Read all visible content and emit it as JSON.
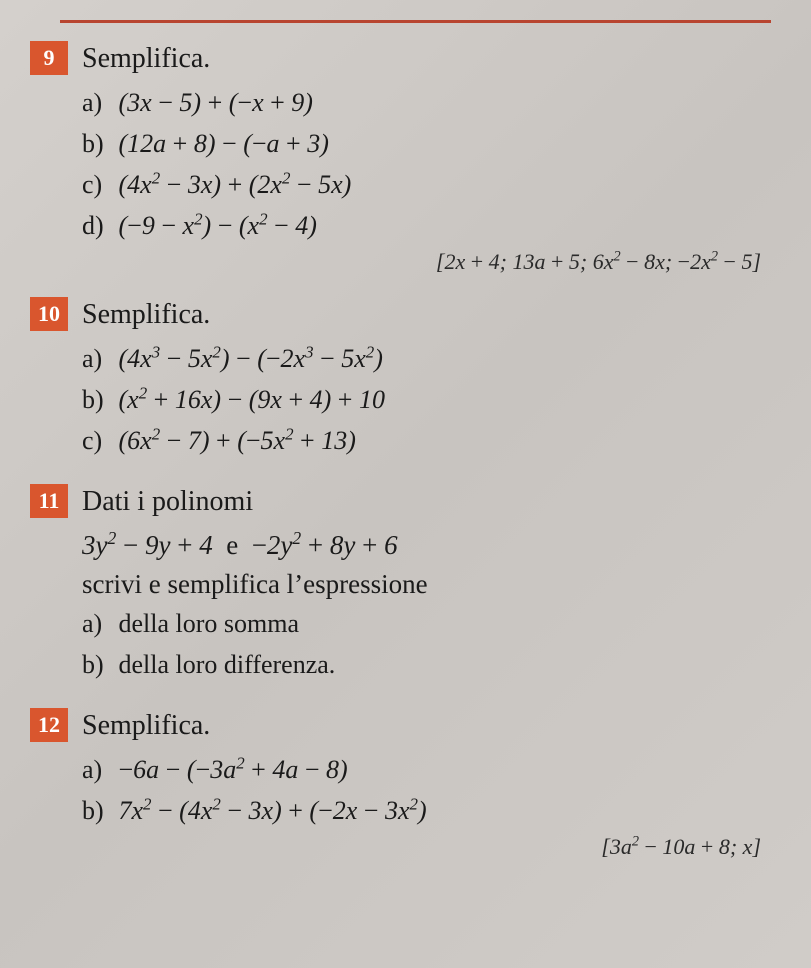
{
  "top_rule_color": "#b84530",
  "number_badge_bg": "#d9562e",
  "number_badge_color": "#ffffff",
  "page_bg": "#d0ccc8",
  "text_color": "#1a1a1a",
  "exercises": [
    {
      "number": "9",
      "title": "Semplifica.",
      "items": [
        {
          "label": "a)",
          "expr": "(3x − 5) + (−x + 9)"
        },
        {
          "label": "b)",
          "expr": "(12a + 8) − (−a + 3)"
        },
        {
          "label": "c)",
          "expr": "(4x² − 3x) + (2x² − 5x)"
        },
        {
          "label": "d)",
          "expr": "(−9 − x²) − (x² − 4)"
        }
      ],
      "answer": "[2x + 4; 13a + 5; 6x² − 8x; −2x² − 5]"
    },
    {
      "number": "10",
      "title": "Semplifica.",
      "items": [
        {
          "label": "a)",
          "expr": "(4x³ − 5x²) − (−2x³ − 5x²)"
        },
        {
          "label": "b)",
          "expr": "(x² + 16x) − (9x + 4) + 10"
        },
        {
          "label": "c)",
          "expr": "(6x² − 7) + (−5x² + 13)"
        }
      ],
      "answer": ""
    },
    {
      "number": "11",
      "title": "Dati i polinomi",
      "intro_line": "3y² − 9y + 4  e  −2y² + 8y + 6",
      "instruction": "scrivi e semplifica l’espressione",
      "items": [
        {
          "label": "a)",
          "text": "della loro somma"
        },
        {
          "label": "b)",
          "text": "della loro differenza."
        }
      ],
      "answer": ""
    },
    {
      "number": "12",
      "title": "Semplifica.",
      "items": [
        {
          "label": "a)",
          "expr": "−6a − (−3a² + 4a − 8)"
        },
        {
          "label": "b)",
          "expr": "7x² − (4x² − 3x) + (−2x − 3x²)"
        }
      ],
      "answer": "[3a² − 10a + 8; x]"
    }
  ]
}
